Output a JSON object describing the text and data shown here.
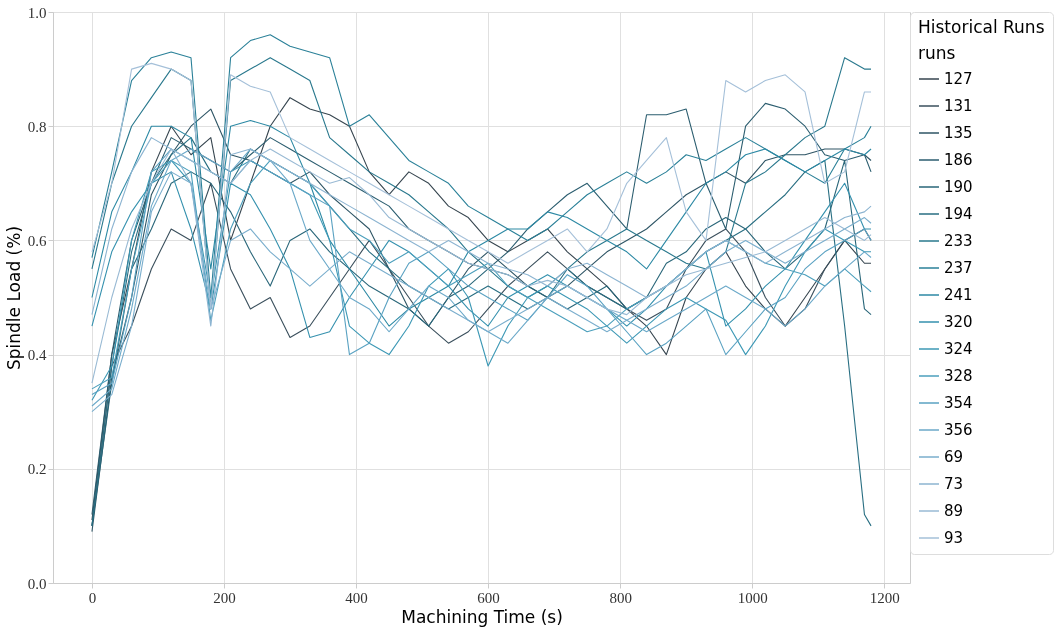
{
  "chart_data": {
    "type": "line",
    "xlabel": "Machining Time (s)",
    "ylabel": "Spindle Load (%)",
    "legend_title": "Historical Runs",
    "annotations": [
      "runs"
    ],
    "xlim": [
      -59,
      1239
    ],
    "xticks": [
      0,
      200,
      400,
      600,
      800,
      1000,
      1200
    ],
    "ylim": [
      0,
      1
    ],
    "yticks": [
      {
        "value": 0,
        "label": "0.0"
      },
      {
        "value": 0.2,
        "label": "0.2"
      },
      {
        "value": 0.4,
        "label": "0.4"
      },
      {
        "value": 0.6,
        "label": "0.6"
      },
      {
        "value": 0.8,
        "label": "0.8"
      },
      {
        "value": 1,
        "label": "1.0"
      }
    ],
    "grid": true,
    "legend": "right",
    "marker": "none",
    "line_style": "solid",
    "x": [
      0,
      30,
      60,
      90,
      120,
      150,
      180,
      210,
      240,
      270,
      300,
      330,
      360,
      390,
      420,
      450,
      480,
      510,
      540,
      570,
      600,
      630,
      660,
      690,
      720,
      750,
      780,
      810,
      840,
      870,
      900,
      930,
      960,
      990,
      1020,
      1050,
      1080,
      1110,
      1140,
      1170,
      1180
    ],
    "series": [
      {
        "name": "127",
        "color": "#36454f",
        "values": [
          0.11,
          0.4,
          0.55,
          0.72,
          0.8,
          0.75,
          0.78,
          0.6,
          0.7,
          0.8,
          0.85,
          0.83,
          0.82,
          0.8,
          0.72,
          0.68,
          0.72,
          0.7,
          0.66,
          0.64,
          0.6,
          0.58,
          0.6,
          0.62,
          0.58,
          0.55,
          0.52,
          0.48,
          0.45,
          0.4,
          0.5,
          0.55,
          0.58,
          0.52,
          0.48,
          0.45,
          0.5,
          0.55,
          0.6,
          0.56,
          0.56
        ]
      },
      {
        "name": "131",
        "color": "#3a4f5c",
        "values": [
          0.1,
          0.38,
          0.45,
          0.55,
          0.62,
          0.6,
          0.7,
          0.55,
          0.48,
          0.5,
          0.43,
          0.45,
          0.5,
          0.55,
          0.6,
          0.55,
          0.5,
          0.45,
          0.42,
          0.44,
          0.48,
          0.52,
          0.55,
          0.58,
          0.55,
          0.52,
          0.5,
          0.48,
          0.46,
          0.48,
          0.55,
          0.6,
          0.62,
          0.58,
          0.5,
          0.45,
          0.48,
          0.55,
          0.6,
          0.62,
          0.6
        ]
      },
      {
        "name": "135",
        "color": "#2e5565",
        "values": [
          0.09,
          0.36,
          0.5,
          0.68,
          0.75,
          0.8,
          0.83,
          0.75,
          0.74,
          0.72,
          0.7,
          0.72,
          0.68,
          0.65,
          0.62,
          0.55,
          0.48,
          0.45,
          0.5,
          0.55,
          0.58,
          0.55,
          0.52,
          0.5,
          0.52,
          0.55,
          0.58,
          0.6,
          0.62,
          0.65,
          0.68,
          0.7,
          0.72,
          0.7,
          0.74,
          0.75,
          0.75,
          0.76,
          0.76,
          0.75,
          0.74
        ]
      },
      {
        "name": "186",
        "color": "#2b5d6f",
        "values": [
          0.12,
          0.4,
          0.6,
          0.7,
          0.78,
          0.76,
          0.74,
          0.72,
          0.75,
          0.78,
          0.76,
          0.74,
          0.72,
          0.7,
          0.68,
          0.66,
          0.62,
          0.6,
          0.58,
          0.56,
          0.55,
          0.58,
          0.62,
          0.65,
          0.68,
          0.7,
          0.66,
          0.62,
          0.82,
          0.82,
          0.83,
          0.7,
          0.62,
          0.8,
          0.84,
          0.83,
          0.8,
          0.75,
          0.74,
          0.75,
          0.72
        ]
      },
      {
        "name": "190",
        "color": "#296679",
        "values": [
          0.1,
          0.35,
          0.55,
          0.62,
          0.7,
          0.72,
          0.7,
          0.65,
          0.58,
          0.52,
          0.6,
          0.62,
          0.58,
          0.55,
          0.52,
          0.5,
          0.48,
          0.45,
          0.5,
          0.52,
          0.55,
          0.54,
          0.52,
          0.5,
          0.48,
          0.5,
          0.52,
          0.48,
          0.5,
          0.56,
          0.58,
          0.62,
          0.64,
          0.62,
          0.58,
          0.55,
          0.58,
          0.62,
          0.74,
          0.48,
          0.47
        ]
      },
      {
        "name": "194",
        "color": "#286e82",
        "values": [
          0.1,
          0.38,
          0.58,
          0.7,
          0.75,
          0.78,
          0.72,
          0.7,
          0.76,
          0.74,
          0.72,
          0.7,
          0.66,
          0.62,
          0.58,
          0.55,
          0.52,
          0.5,
          0.48,
          0.5,
          0.52,
          0.5,
          0.48,
          0.5,
          0.55,
          0.52,
          0.5,
          0.48,
          0.5,
          0.52,
          0.55,
          0.58,
          0.6,
          0.62,
          0.65,
          0.68,
          0.72,
          0.74,
          0.45,
          0.12,
          0.1
        ]
      },
      {
        "name": "233",
        "color": "#29788d",
        "values": [
          0.55,
          0.7,
          0.8,
          0.85,
          0.9,
          0.88,
          0.48,
          0.88,
          0.9,
          0.92,
          0.9,
          0.88,
          0.78,
          0.75,
          0.72,
          0.7,
          0.68,
          0.65,
          0.62,
          0.58,
          0.55,
          0.52,
          0.5,
          0.52,
          0.55,
          0.58,
          0.6,
          0.62,
          0.6,
          0.58,
          0.56,
          0.55,
          0.58,
          0.7,
          0.72,
          0.75,
          0.78,
          0.8,
          0.92,
          0.9,
          0.9
        ]
      },
      {
        "name": "237",
        "color": "#2a8098",
        "values": [
          0.57,
          0.72,
          0.88,
          0.92,
          0.93,
          0.92,
          0.5,
          0.92,
          0.95,
          0.96,
          0.94,
          0.93,
          0.92,
          0.8,
          0.82,
          0.78,
          0.74,
          0.72,
          0.7,
          0.66,
          0.64,
          0.62,
          0.6,
          0.62,
          0.65,
          0.68,
          0.7,
          0.72,
          0.7,
          0.72,
          0.75,
          0.74,
          0.76,
          0.78,
          0.76,
          0.74,
          0.72,
          0.7,
          0.76,
          0.78,
          0.8
        ]
      },
      {
        "name": "241",
        "color": "#2c89a4",
        "values": [
          0.5,
          0.65,
          0.72,
          0.8,
          0.8,
          0.78,
          0.55,
          0.8,
          0.81,
          0.8,
          0.78,
          0.7,
          0.6,
          0.55,
          0.5,
          0.45,
          0.48,
          0.5,
          0.52,
          0.58,
          0.6,
          0.62,
          0.62,
          0.65,
          0.64,
          0.62,
          0.6,
          0.58,
          0.55,
          0.6,
          0.65,
          0.7,
          0.72,
          0.75,
          0.76,
          0.74,
          0.72,
          0.74,
          0.76,
          0.75,
          0.76
        ]
      },
      {
        "name": "320",
        "color": "#3591ae",
        "values": [
          0.45,
          0.58,
          0.65,
          0.7,
          0.72,
          0.62,
          0.48,
          0.7,
          0.68,
          0.62,
          0.55,
          0.43,
          0.44,
          0.5,
          0.55,
          0.6,
          0.58,
          0.55,
          0.52,
          0.48,
          0.45,
          0.5,
          0.52,
          0.54,
          0.52,
          0.5,
          0.48,
          0.45,
          0.48,
          0.52,
          0.55,
          0.58,
          0.45,
          0.48,
          0.52,
          0.55,
          0.6,
          0.65,
          0.7,
          0.62,
          0.62
        ]
      },
      {
        "name": "324",
        "color": "#3c98b5",
        "values": [
          0.32,
          0.38,
          0.6,
          0.72,
          0.74,
          0.7,
          0.5,
          0.72,
          0.74,
          0.72,
          0.7,
          0.68,
          0.6,
          0.45,
          0.42,
          0.4,
          0.45,
          0.52,
          0.55,
          0.5,
          0.38,
          0.45,
          0.5,
          0.52,
          0.5,
          0.48,
          0.45,
          0.42,
          0.45,
          0.48,
          0.5,
          0.48,
          0.46,
          0.4,
          0.45,
          0.52,
          0.58,
          0.62,
          0.6,
          0.58,
          0.58
        ]
      },
      {
        "name": "328",
        "color": "#4b9fbc",
        "values": [
          0.34,
          0.36,
          0.55,
          0.7,
          0.74,
          0.72,
          0.46,
          0.62,
          0.7,
          0.74,
          0.72,
          0.7,
          0.66,
          0.62,
          0.6,
          0.56,
          0.58,
          0.55,
          0.52,
          0.54,
          0.56,
          0.52,
          0.5,
          0.48,
          0.46,
          0.44,
          0.45,
          0.48,
          0.5,
          0.52,
          0.55,
          0.58,
          0.6,
          0.58,
          0.56,
          0.55,
          0.54,
          0.52,
          0.55,
          0.52,
          0.51
        ]
      },
      {
        "name": "354",
        "color": "#5aa2c2",
        "values": [
          0.33,
          0.35,
          0.5,
          0.72,
          0.76,
          0.74,
          0.72,
          0.7,
          0.74,
          0.72,
          0.7,
          0.68,
          0.66,
          0.4,
          0.42,
          0.5,
          0.56,
          0.58,
          0.55,
          0.52,
          0.5,
          0.48,
          0.46,
          0.5,
          0.54,
          0.52,
          0.48,
          0.44,
          0.4,
          0.42,
          0.45,
          0.48,
          0.4,
          0.44,
          0.48,
          0.5,
          0.55,
          0.58,
          0.6,
          0.62,
          0.6
        ]
      },
      {
        "name": "356",
        "color": "#6ba9c9",
        "values": [
          0.31,
          0.34,
          0.48,
          0.66,
          0.74,
          0.76,
          0.74,
          0.72,
          0.76,
          0.74,
          0.7,
          0.6,
          0.55,
          0.5,
          0.48,
          0.44,
          0.48,
          0.52,
          0.5,
          0.46,
          0.44,
          0.42,
          0.46,
          0.5,
          0.52,
          0.5,
          0.48,
          0.46,
          0.44,
          0.46,
          0.48,
          0.5,
          0.52,
          0.5,
          0.48,
          0.45,
          0.48,
          0.52,
          0.55,
          0.58,
          0.57
        ]
      },
      {
        "name": "69",
        "color": "#7aaecd",
        "values": [
          0.3,
          0.33,
          0.45,
          0.65,
          0.72,
          0.7,
          0.48,
          0.6,
          0.62,
          0.58,
          0.55,
          0.52,
          0.55,
          0.58,
          0.56,
          0.54,
          0.52,
          0.5,
          0.48,
          0.46,
          0.44,
          0.46,
          0.48,
          0.5,
          0.48,
          0.46,
          0.44,
          0.46,
          0.48,
          0.5,
          0.52,
          0.55,
          0.58,
          0.6,
          0.58,
          0.56,
          0.58,
          0.6,
          0.62,
          0.64,
          0.63
        ]
      },
      {
        "name": "73",
        "color": "#8cb4d1",
        "values": [
          0.47,
          0.62,
          0.72,
          0.78,
          0.76,
          0.7,
          0.45,
          0.75,
          0.76,
          0.74,
          0.72,
          0.7,
          0.68,
          0.66,
          0.64,
          0.62,
          0.6,
          0.58,
          0.6,
          0.58,
          0.56,
          0.55,
          0.54,
          0.52,
          0.55,
          0.56,
          0.54,
          0.52,
          0.5,
          0.52,
          0.55,
          0.58,
          0.6,
          0.58,
          0.56,
          0.58,
          0.6,
          0.62,
          0.64,
          0.65,
          0.66
        ]
      },
      {
        "name": "89",
        "color": "#99bad4",
        "values": [
          0.35,
          0.5,
          0.62,
          0.7,
          0.76,
          0.74,
          0.72,
          0.7,
          0.74,
          0.76,
          0.74,
          0.72,
          0.7,
          0.71,
          0.68,
          0.64,
          0.62,
          0.6,
          0.58,
          0.56,
          0.55,
          0.54,
          0.52,
          0.53,
          0.52,
          0.5,
          0.48,
          0.47,
          0.5,
          0.52,
          0.54,
          0.55,
          0.56,
          0.57,
          0.58,
          0.6,
          0.62,
          0.64,
          0.62,
          0.6,
          0.61
        ]
      },
      {
        "name": "93",
        "color": "#a5c0d9",
        "values": [
          0.58,
          0.7,
          0.9,
          0.91,
          0.9,
          0.88,
          0.48,
          0.89,
          0.87,
          0.86,
          0.78,
          0.76,
          0.74,
          0.72,
          0.7,
          0.68,
          0.66,
          0.64,
          0.62,
          0.6,
          0.58,
          0.56,
          0.58,
          0.6,
          0.62,
          0.58,
          0.62,
          0.7,
          0.74,
          0.78,
          0.65,
          0.6,
          0.88,
          0.86,
          0.88,
          0.89,
          0.86,
          0.7,
          0.72,
          0.86,
          0.86
        ]
      }
    ]
  }
}
